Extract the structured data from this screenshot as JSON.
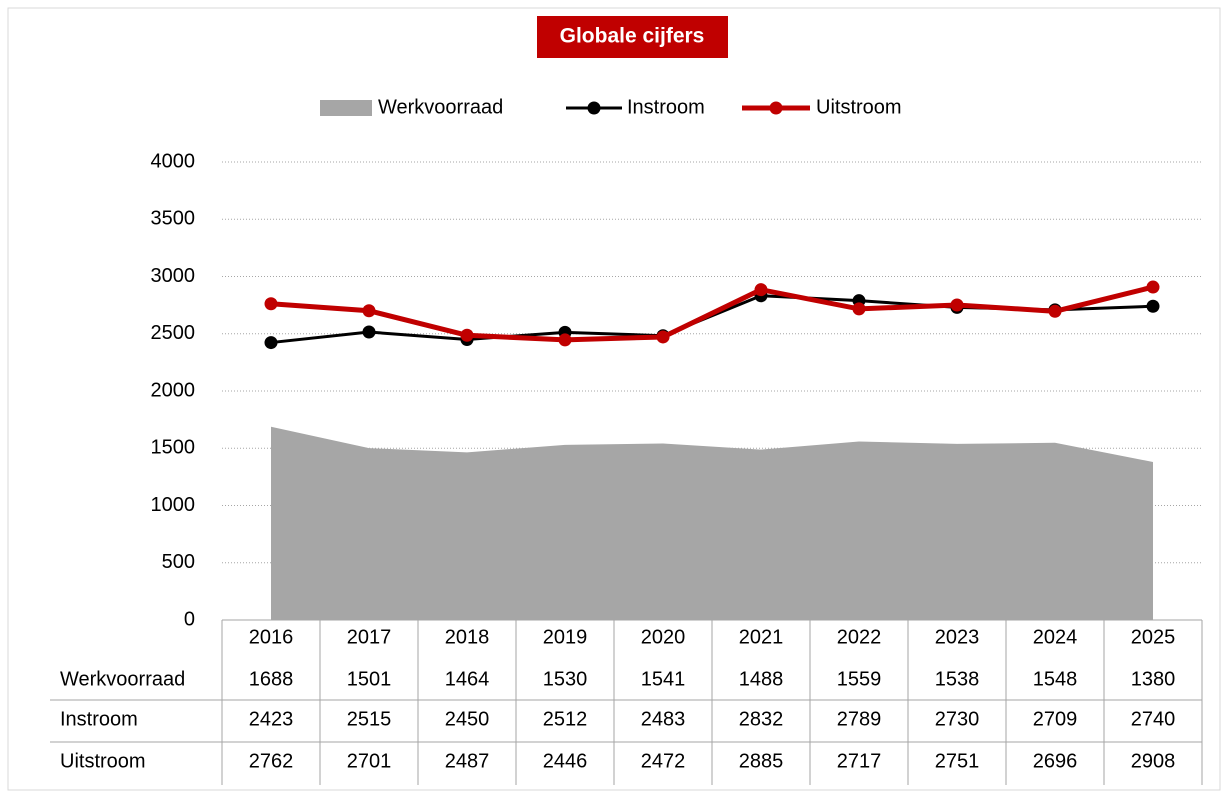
{
  "chart_data": {
    "type": "line",
    "title": "Globale cijfers",
    "categories": [
      "2016",
      "2017",
      "2018",
      "2019",
      "2020",
      "2021",
      "2022",
      "2023",
      "2024",
      "2025"
    ],
    "series": [
      {
        "name": "Werkvoorraad",
        "type": "area",
        "color": "#a6a6a6",
        "values": [
          1688,
          1501,
          1464,
          1530,
          1541,
          1488,
          1559,
          1538,
          1548,
          1380
        ]
      },
      {
        "name": "Instroom",
        "type": "line",
        "color": "#000000",
        "values": [
          2423,
          2515,
          2450,
          2512,
          2483,
          2832,
          2789,
          2730,
          2709,
          2740
        ]
      },
      {
        "name": "Uitstroom",
        "type": "line",
        "color": "#c00000",
        "values": [
          2762,
          2701,
          2487,
          2446,
          2472,
          2885,
          2717,
          2751,
          2696,
          2908
        ]
      }
    ],
    "ylim": [
      0,
      4000
    ],
    "yticks": [
      0,
      500,
      1000,
      1500,
      2000,
      2500,
      3000,
      3500,
      4000
    ],
    "grid": true,
    "legend": "top",
    "data_table": true
  }
}
